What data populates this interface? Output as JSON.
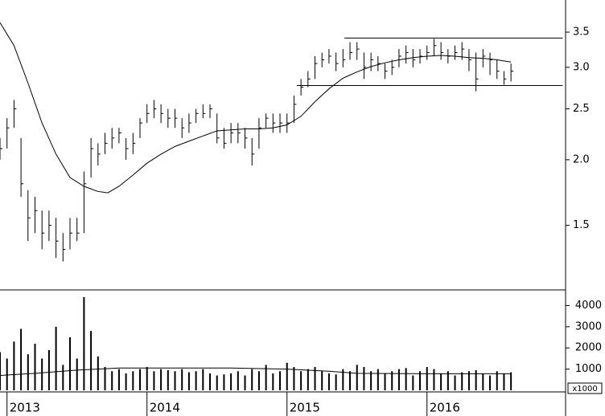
{
  "chart_data": {
    "type": "ohlc",
    "x": [
      2012.95,
      2013.0,
      2013.05,
      2013.1,
      2013.15,
      2013.2,
      2013.25,
      2013.3,
      2013.35,
      2013.4,
      2013.45,
      2013.5,
      2013.55,
      2013.6,
      2013.65,
      2013.7,
      2013.75,
      2013.8,
      2013.85,
      2013.9,
      2013.95,
      2014.0,
      2014.05,
      2014.1,
      2014.15,
      2014.2,
      2014.25,
      2014.3,
      2014.35,
      2014.4,
      2014.45,
      2014.5,
      2014.55,
      2014.6,
      2014.65,
      2014.7,
      2014.75,
      2014.8,
      2014.85,
      2014.9,
      2014.95,
      2015.0,
      2015.05,
      2015.1,
      2015.15,
      2015.2,
      2015.25,
      2015.3,
      2015.35,
      2015.4,
      2015.45,
      2015.5,
      2015.55,
      2015.6,
      2015.65,
      2015.7,
      2015.75,
      2015.8,
      2015.85,
      2015.9,
      2015.95,
      2016.0,
      2016.05,
      2016.1,
      2016.15,
      2016.2,
      2016.25,
      2016.3,
      2016.35,
      2016.4,
      2016.45,
      2016.5,
      2016.55,
      2016.6
    ],
    "high": [
      2.2,
      2.4,
      2.6,
      2.2,
      1.75,
      1.7,
      1.6,
      1.6,
      1.55,
      1.45,
      1.55,
      1.55,
      1.9,
      2.2,
      2.15,
      2.25,
      2.3,
      2.3,
      2.2,
      2.25,
      2.4,
      2.55,
      2.6,
      2.55,
      2.5,
      2.5,
      2.4,
      2.45,
      2.5,
      2.55,
      2.55,
      2.45,
      2.3,
      2.35,
      2.35,
      2.3,
      2.2,
      2.4,
      2.45,
      2.45,
      2.45,
      2.45,
      2.65,
      2.85,
      2.95,
      3.15,
      3.2,
      3.25,
      3.2,
      3.25,
      3.35,
      3.35,
      3.2,
      3.2,
      3.15,
      3.05,
      3.1,
      3.25,
      3.3,
      3.25,
      3.25,
      3.3,
      3.4,
      3.35,
      3.25,
      3.3,
      3.35,
      3.25,
      3.2,
      3.25,
      3.2,
      3.1,
      2.95,
      3.05
    ],
    "low": [
      2.0,
      2.1,
      2.3,
      1.7,
      1.4,
      1.45,
      1.35,
      1.4,
      1.3,
      1.28,
      1.35,
      1.4,
      1.45,
      1.85,
      1.95,
      2.05,
      2.1,
      2.15,
      2.0,
      2.05,
      2.2,
      2.35,
      2.4,
      2.35,
      2.3,
      2.3,
      2.2,
      2.25,
      2.35,
      2.4,
      2.4,
      2.15,
      2.1,
      2.15,
      2.15,
      2.1,
      1.95,
      2.1,
      2.3,
      2.25,
      2.25,
      2.25,
      2.35,
      2.65,
      2.75,
      2.85,
      3.0,
      3.05,
      2.95,
      3.0,
      3.1,
      3.1,
      2.85,
      2.95,
      2.95,
      2.85,
      2.9,
      3.0,
      3.05,
      3.0,
      3.05,
      3.1,
      3.15,
      3.1,
      3.05,
      3.1,
      3.1,
      2.95,
      2.7,
      3.0,
      2.9,
      2.85,
      2.78,
      2.82
    ],
    "close": [
      2.1,
      2.3,
      2.5,
      1.8,
      1.55,
      1.6,
      1.45,
      1.5,
      1.4,
      1.35,
      1.45,
      1.45,
      1.8,
      2.1,
      2.05,
      2.15,
      2.2,
      2.25,
      2.1,
      2.15,
      2.35,
      2.45,
      2.5,
      2.45,
      2.4,
      2.4,
      2.3,
      2.35,
      2.45,
      2.45,
      2.5,
      2.2,
      2.15,
      2.25,
      2.25,
      2.2,
      2.05,
      2.3,
      2.4,
      2.35,
      2.35,
      2.35,
      2.55,
      2.75,
      2.85,
      3.05,
      3.1,
      3.15,
      3.05,
      3.1,
      3.2,
      3.25,
      3.0,
      3.1,
      3.05,
      2.95,
      3.0,
      3.15,
      3.2,
      3.1,
      3.15,
      3.2,
      3.3,
      3.2,
      3.15,
      3.2,
      3.25,
      3.1,
      2.85,
      3.15,
      3.1,
      2.95,
      2.85,
      2.95
    ],
    "volume": [
      1800,
      1500,
      2300,
      2900,
      1700,
      2200,
      1500,
      1900,
      3000,
      1200,
      2500,
      1500,
      4400,
      2800,
      1600,
      1100,
      900,
      1000,
      800,
      900,
      1000,
      1100,
      900,
      1000,
      950,
      900,
      1000,
      850,
      900,
      1000,
      800,
      700,
      750,
      800,
      900,
      700,
      1000,
      900,
      1200,
      800,
      900,
      1300,
      1100,
      900,
      1000,
      1100,
      900,
      800,
      750,
      1000,
      900,
      1200,
      1100,
      900,
      1000,
      800,
      900,
      1000,
      1050,
      700,
      900,
      1100,
      1000,
      800,
      900,
      700,
      850,
      900,
      950,
      800,
      700,
      900,
      800,
      850
    ],
    "price_ma": {
      "x": [
        2012.95,
        2013.05,
        2013.15,
        2013.25,
        2013.35,
        2013.45,
        2013.55,
        2013.65,
        2013.72,
        2013.8,
        2013.9,
        2014.0,
        2014.1,
        2014.2,
        2014.3,
        2014.4,
        2014.5,
        2014.6,
        2014.7,
        2014.8,
        2014.9,
        2015.0,
        2015.1,
        2015.2,
        2015.3,
        2015.4,
        2015.5,
        2015.6,
        2015.7,
        2015.8,
        2015.9,
        2016.0,
        2016.1,
        2016.2,
        2016.3,
        2016.4,
        2016.5,
        2016.6
      ],
      "values": [
        3.65,
        3.3,
        2.8,
        2.35,
        2.05,
        1.85,
        1.78,
        1.74,
        1.73,
        1.78,
        1.87,
        1.97,
        2.05,
        2.12,
        2.17,
        2.22,
        2.27,
        2.28,
        2.29,
        2.29,
        2.3,
        2.33,
        2.42,
        2.58,
        2.73,
        2.86,
        2.94,
        3.01,
        3.06,
        3.1,
        3.13,
        3.15,
        3.16,
        3.15,
        3.13,
        3.12,
        3.1,
        3.07
      ]
    },
    "volume_ma": {
      "x": [
        2012.95,
        2013.2,
        2013.5,
        2013.8,
        2014.2,
        2014.6,
        2015.0,
        2015.3,
        2015.5,
        2016.0,
        2016.6
      ],
      "values": [
        700,
        800,
        950,
        1050,
        1050,
        1050,
        1000,
        900,
        800,
        780,
        780
      ]
    },
    "levels": [
      {
        "value": 3.41,
        "x": [
          2015.41,
          2016.97
        ]
      },
      {
        "value": 2.77,
        "x": [
          2015.07,
          2016.97
        ]
      }
    ],
    "color": "#000000",
    "log_scale": true,
    "ylim": [
      1.13,
      4.03
    ],
    "yticks": [
      1.5,
      {
        "value": 2,
        "label": "2.0"
      },
      2.5,
      {
        "value": 3,
        "label": "3.0"
      },
      3.5
    ],
    "volume_ylim": [
      0,
      4700
    ],
    "volume_yticks": [
      1000,
      2000,
      3000,
      4000
    ],
    "volume_unit_label": "x1000",
    "xlim": [
      2012.95,
      2016.99
    ],
    "xticks": [
      2013,
      2014,
      2015,
      2016
    ]
  }
}
